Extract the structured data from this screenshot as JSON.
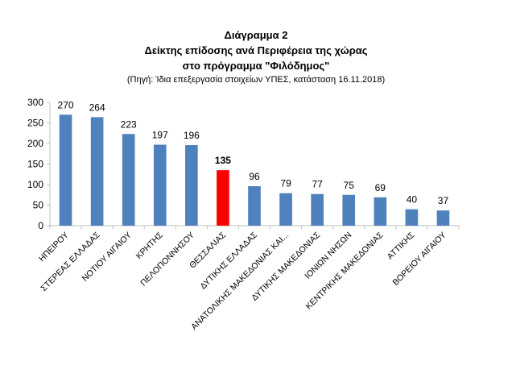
{
  "title_lines": [
    "Διάγραμμα 2",
    "Δείκτης επίδοσης ανά Περιφέρεια της χώρας",
    "στο πρόγραμμα  \"Φιλόδημος\"",
    "(Πηγή: Ίδια επεξεργασία στοιχείων ΥΠΕΣ, κατάσταση  16.11.2018)"
  ],
  "chart_data": {
    "type": "bar",
    "categories": [
      "ΗΠΕΙΡΟΥ",
      "ΣΤΕΡΕΑΣ ΕΛΛΑΔΑΣ",
      "ΝΟΤΙΟΥ ΑΙΓΑΙΟΥ",
      "ΚΡΗΤΗΣ",
      "ΠΕΛΟΠΟΝΝΗΣΟΥ",
      "ΘΕΣΣΑΛΙΑΣ",
      "ΔΥΤΙΚΗΣ ΕΛΛΑΔΑΣ",
      "ΑΝΑΤΟΛΙΚΗΣ ΜΑΚΕΔΟΝΙΑΣ ΚΑΙ...",
      "ΔΥΤΙΚΗΣ ΜΑΚΕΔΟΝΙΑΣ",
      "ΙΟΝΙΩΝ ΝΗΣΩΝ",
      "ΚΕΝΤΡΙΚΗΣ ΜΑΚΕΔΟΝΙΑΣ",
      "ΑΤΤΙΚΗΣ",
      "ΒΟΡΕΙΟΥ ΑΙΓΑΙΟΥ"
    ],
    "values": [
      270,
      264,
      223,
      197,
      196,
      135,
      96,
      79,
      77,
      75,
      69,
      40,
      37
    ],
    "highlight_index": 5,
    "ylim": [
      0,
      300
    ],
    "yticks": [
      0,
      50,
      100,
      150,
      200,
      250,
      300
    ],
    "colors": {
      "bar": "#4f81bd",
      "highlight": "#ff0000",
      "axis": "#bfbfbf"
    },
    "grid": false,
    "legend": "none"
  }
}
